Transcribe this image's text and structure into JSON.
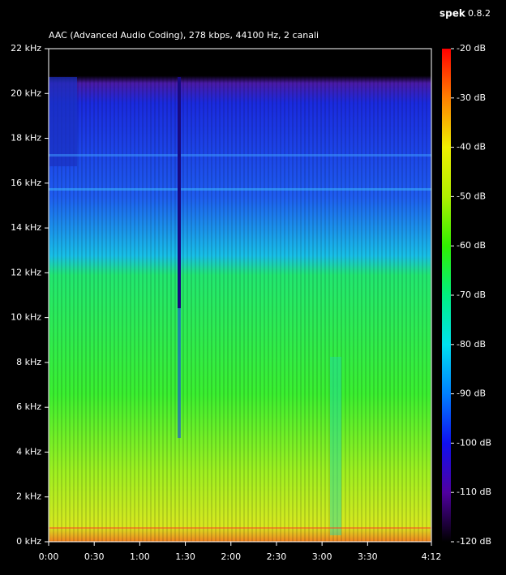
{
  "header": {
    "app": "spek",
    "version": "0.8.2"
  },
  "chart_data": {
    "type": "spectrogram",
    "title": "AAC (Advanced Audio Coding), 278 kbps, 44100 Hz, 2 canali",
    "xlim": [
      0,
      252
    ],
    "xticks": [
      {
        "value": 0,
        "label": "0:00"
      },
      {
        "value": 30,
        "label": "0:30"
      },
      {
        "value": 60,
        "label": "1:00"
      },
      {
        "value": 90,
        "label": "1:30"
      },
      {
        "value": 120,
        "label": "2:00"
      },
      {
        "value": 150,
        "label": "2:30"
      },
      {
        "value": 180,
        "label": "3:00"
      },
      {
        "value": 210,
        "label": "3:30"
      },
      {
        "value": 252,
        "label": "4:12"
      }
    ],
    "ylim": [
      0,
      22
    ],
    "yticks": [
      {
        "value": 0,
        "label": "0 kHz"
      },
      {
        "value": 2,
        "label": "2 kHz"
      },
      {
        "value": 4,
        "label": "4 kHz"
      },
      {
        "value": 6,
        "label": "6 kHz"
      },
      {
        "value": 8,
        "label": "8 kHz"
      },
      {
        "value": 10,
        "label": "10 kHz"
      },
      {
        "value": 12,
        "label": "12 kHz"
      },
      {
        "value": 14,
        "label": "14 kHz"
      },
      {
        "value": 16,
        "label": "16 kHz"
      },
      {
        "value": 18,
        "label": "18 kHz"
      },
      {
        "value": 20,
        "label": "20 kHz"
      },
      {
        "value": 22,
        "label": "22 kHz"
      }
    ],
    "clim": [
      -120,
      -20
    ],
    "cticks": [
      {
        "value": -20,
        "label": "-20 dB"
      },
      {
        "value": -30,
        "label": "-30 dB"
      },
      {
        "value": -40,
        "label": "-40 dB"
      },
      {
        "value": -50,
        "label": "-50 dB"
      },
      {
        "value": -60,
        "label": "-60 dB"
      },
      {
        "value": -70,
        "label": "-70 dB"
      },
      {
        "value": -80,
        "label": "-80 dB"
      },
      {
        "value": -90,
        "label": "-90 dB"
      },
      {
        "value": -100,
        "label": "-100 dB"
      },
      {
        "value": -110,
        "label": "-110 dB"
      },
      {
        "value": -120,
        "label": "-120 dB"
      }
    ]
  }
}
